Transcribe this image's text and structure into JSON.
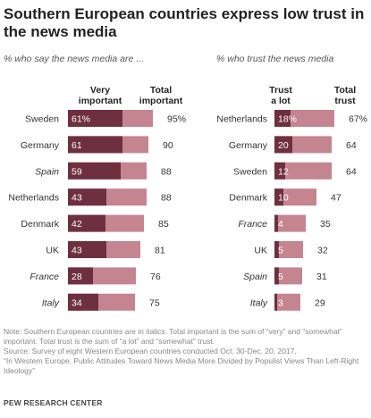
{
  "title": "Southern European countries express low trust in the news media",
  "chart_data": [
    {
      "type": "bar",
      "subtitle": "% who say the news media are ...",
      "headers": {
        "part": "Very\nimportant",
        "total": "Total\nimportant"
      },
      "categories": [
        "Sweden",
        "Germany",
        "Spain",
        "Netherlands",
        "Denmark",
        "UK",
        "France",
        "Italy"
      ],
      "italic": [
        false,
        false,
        true,
        false,
        false,
        false,
        true,
        true
      ],
      "series": [
        {
          "name": "Very important",
          "values": [
            61,
            61,
            59,
            43,
            42,
            43,
            28,
            34
          ],
          "labels": [
            "61%",
            "61",
            "59",
            "43",
            "42",
            "43",
            "28",
            "34"
          ]
        },
        {
          "name": "Total important",
          "values": [
            95,
            90,
            88,
            88,
            85,
            81,
            76,
            75
          ],
          "labels": [
            "95%",
            "90",
            "88",
            "88",
            "85",
            "81",
            "76",
            "75"
          ]
        }
      ]
    },
    {
      "type": "bar",
      "subtitle": "% who trust the news media",
      "headers": {
        "part": "Trust\na lot",
        "total": "Total\ntrust"
      },
      "categories": [
        "Netherlands",
        "Germany",
        "Sweden",
        "Denmark",
        "France",
        "UK",
        "Spain",
        "Italy"
      ],
      "italic": [
        false,
        false,
        false,
        false,
        true,
        false,
        true,
        true
      ],
      "series": [
        {
          "name": "Trust a lot",
          "values": [
            18,
            20,
            12,
            10,
            4,
            5,
            5,
            3
          ],
          "labels": [
            "18%",
            "20",
            "12",
            "10",
            "4",
            "5",
            "5",
            "3"
          ]
        },
        {
          "name": "Total trust",
          "values": [
            67,
            64,
            64,
            47,
            35,
            32,
            31,
            29
          ],
          "labels": [
            "67%",
            "64",
            "64",
            "47",
            "35",
            "32",
            "31",
            "29"
          ]
        }
      ]
    }
  ],
  "colors": {
    "dark": "#6e3040",
    "light": "#c48590",
    "inner_text": "#ffffff",
    "outer_text": "#333333"
  },
  "notes": {
    "line1": "Note: Southern European countries are in italics. Total important is the sum of “very” and “somewhat” important. Total trust is the sum of “a lot” and “somewhat” trust.",
    "line2": "Source: Survey of eight Western European countries conducted Oct. 30-Dec. 20, 2017.",
    "line3": "“In Western Europe, Public Attitudes Toward News Media More Divided by Populist Views Than Left-Right Ideology”"
  },
  "org": "PEW RESEARCH CENTER"
}
